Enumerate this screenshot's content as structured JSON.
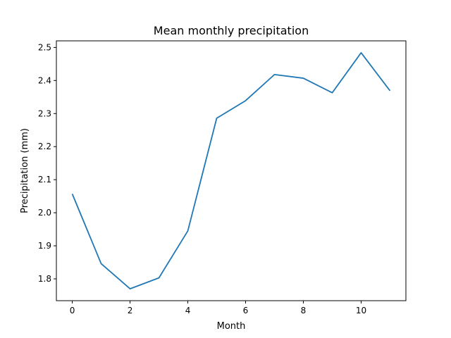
{
  "chart_data": {
    "type": "line",
    "title": "Mean monthly precipitation",
    "xlabel": "Month",
    "ylabel": "Precipitation (mm)",
    "x": [
      0,
      1,
      2,
      3,
      4,
      5,
      6,
      7,
      8,
      9,
      10,
      11
    ],
    "series": [
      {
        "values": [
          2.057,
          1.846,
          1.77,
          1.803,
          1.945,
          2.286,
          2.339,
          2.418,
          2.407,
          2.363,
          2.484,
          2.369
        ],
        "color": "#1f77b4"
      }
    ],
    "xlim": [
      -0.55,
      11.55
    ],
    "ylim": [
      1.734,
      2.52
    ],
    "xticks": [
      0,
      2,
      4,
      6,
      8,
      10
    ],
    "xtick_labels": [
      "0",
      "2",
      "4",
      "6",
      "8",
      "10"
    ],
    "yticks": [
      1.8,
      1.9,
      2.0,
      2.1,
      2.2,
      2.3,
      2.4,
      2.5
    ],
    "ytick_labels": [
      "1.8",
      "1.9",
      "2.0",
      "2.1",
      "2.2",
      "2.3",
      "2.4",
      "2.5"
    ],
    "grid": false,
    "legend": false
  }
}
